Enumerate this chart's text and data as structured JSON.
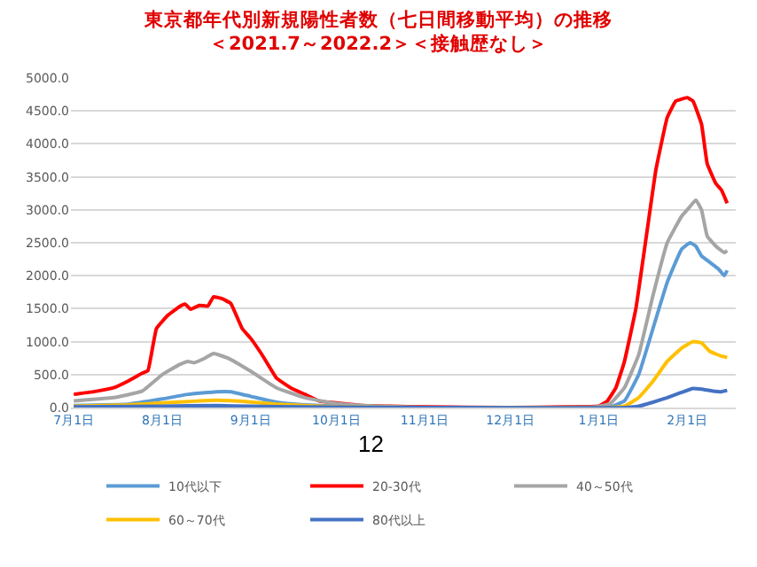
{
  "chart_data": {
    "type": "line",
    "title": "東京都年代別新規陽性者数（七日間移動平均）の推移",
    "subtitle": "＜2021.7～2022.2＞＜接触歴なし＞",
    "annotations": [
      "12"
    ],
    "ylim": [
      0,
      5000
    ],
    "yticks": [
      {
        "value": 0,
        "label": "0.0"
      },
      {
        "value": 500,
        "label": "500.0"
      },
      {
        "value": 1000,
        "label": "1000.0"
      },
      {
        "value": 1500,
        "label": "1500.0"
      },
      {
        "value": 2000,
        "label": "2000.0"
      },
      {
        "value": 2500,
        "label": "2500.0"
      },
      {
        "value": 3000,
        "label": "3000.0"
      },
      {
        "value": 3500,
        "label": "3500.0"
      },
      {
        "value": 4000,
        "label": "4000.0"
      },
      {
        "value": 4500,
        "label": "4500.0"
      },
      {
        "value": 5000,
        "label": "5000.0"
      }
    ],
    "xlim": [
      "2021-06-30",
      "2022-02-18"
    ],
    "xticks": [
      {
        "value": "2021-07-01",
        "label": "7月1日"
      },
      {
        "value": "2021-08-01",
        "label": "8月1日"
      },
      {
        "value": "2021-09-01",
        "label": "9月1日"
      },
      {
        "value": "2021-10-01",
        "label": "10月1日"
      },
      {
        "value": "2021-11-01",
        "label": "11月1日"
      },
      {
        "value": "2021-12-01",
        "label": "12月1日"
      },
      {
        "value": "2022-01-01",
        "label": "1月1日"
      },
      {
        "value": "2022-02-01",
        "label": "2月1日"
      }
    ],
    "grid": "y",
    "legend": "bottom",
    "marker": "none",
    "line_style": "solid",
    "series": [
      {
        "name": "10代以下",
        "color": "#5b9bd5",
        "x": [
          "2021-07-01",
          "2021-07-20",
          "2021-08-01",
          "2021-08-10",
          "2021-08-20",
          "2021-08-25",
          "2021-09-01",
          "2021-09-10",
          "2021-09-20",
          "2021-10-01",
          "2021-11-01",
          "2021-12-31",
          "2022-01-05",
          "2022-01-10",
          "2022-01-15",
          "2022-01-20",
          "2022-01-25",
          "2022-01-30",
          "2022-02-02",
          "2022-02-04",
          "2022-02-06",
          "2022-02-09",
          "2022-02-12",
          "2022-02-14",
          "2022-02-15"
        ],
        "values": [
          30,
          50,
          130,
          200,
          240,
          240,
          170,
          80,
          40,
          20,
          0,
          0,
          10,
          100,
          500,
          1200,
          1900,
          2400,
          2500,
          2450,
          2300,
          2200,
          2100,
          2000,
          2080
        ]
      },
      {
        "name": "20-30代",
        "color": "#ff0000",
        "x": [
          "2021-07-01",
          "2021-07-08",
          "2021-07-15",
          "2021-07-20",
          "2021-07-25",
          "2021-07-27",
          "2021-07-30",
          "2021-08-03",
          "2021-08-07",
          "2021-08-09",
          "2021-08-11",
          "2021-08-14",
          "2021-08-17",
          "2021-08-19",
          "2021-08-22",
          "2021-08-25",
          "2021-08-29",
          "2021-09-01",
          "2021-09-05",
          "2021-09-10",
          "2021-09-15",
          "2021-09-20",
          "2021-09-25",
          "2021-10-01",
          "2021-10-10",
          "2021-10-20",
          "2021-11-01",
          "2021-12-01",
          "2021-12-20",
          "2022-01-01",
          "2022-01-04",
          "2022-01-07",
          "2022-01-10",
          "2022-01-14",
          "2022-01-18",
          "2022-01-21",
          "2022-01-25",
          "2022-01-28",
          "2022-02-01",
          "2022-02-03",
          "2022-02-06",
          "2022-02-08",
          "2022-02-11",
          "2022-02-13",
          "2022-02-15"
        ],
        "values": [
          200,
          240,
          300,
          400,
          520,
          560,
          1200,
          1400,
          1530,
          1570,
          1490,
          1550,
          1540,
          1680,
          1650,
          1580,
          1200,
          1050,
          800,
          450,
          300,
          200,
          100,
          70,
          30,
          20,
          10,
          0,
          10,
          20,
          100,
          300,
          700,
          1500,
          2700,
          3600,
          4400,
          4650,
          4700,
          4650,
          4300,
          3700,
          3400,
          3300,
          3100
        ]
      },
      {
        "name": "40～50代",
        "color": "#a5a5a5",
        "x": [
          "2021-07-01",
          "2021-07-15",
          "2021-07-25",
          "2021-08-01",
          "2021-08-07",
          "2021-08-10",
          "2021-08-12",
          "2021-08-16",
          "2021-08-19",
          "2021-08-24",
          "2021-09-01",
          "2021-09-10",
          "2021-09-20",
          "2021-10-01",
          "2021-10-15",
          "2021-11-01",
          "2021-12-31",
          "2022-01-05",
          "2022-01-10",
          "2022-01-15",
          "2022-01-20",
          "2022-01-25",
          "2022-01-30",
          "2022-02-02",
          "2022-02-04",
          "2022-02-06",
          "2022-02-08",
          "2022-02-11",
          "2022-02-14",
          "2022-02-15"
        ],
        "values": [
          100,
          150,
          250,
          500,
          650,
          700,
          680,
          750,
          820,
          750,
          550,
          300,
          150,
          60,
          20,
          0,
          10,
          60,
          300,
          800,
          1700,
          2500,
          2900,
          3050,
          3150,
          3000,
          2600,
          2450,
          2350,
          2380
        ]
      },
      {
        "name": "60～70代",
        "color": "#ffc000",
        "x": [
          "2021-07-01",
          "2021-07-20",
          "2021-08-01",
          "2021-08-10",
          "2021-08-20",
          "2021-08-30",
          "2021-09-10",
          "2021-09-20",
          "2021-10-01",
          "2021-11-01",
          "2022-01-05",
          "2022-01-10",
          "2022-01-15",
          "2022-01-20",
          "2022-01-25",
          "2022-01-30",
          "2022-02-03",
          "2022-02-06",
          "2022-02-09",
          "2022-02-13",
          "2022-02-15"
        ],
        "values": [
          20,
          40,
          70,
          90,
          110,
          90,
          50,
          30,
          10,
          0,
          0,
          20,
          150,
          400,
          700,
          900,
          1000,
          980,
          850,
          780,
          760
        ]
      },
      {
        "name": "80代以上",
        "color": "#4472c4",
        "x": [
          "2021-07-01",
          "2021-08-01",
          "2021-08-20",
          "2021-09-01",
          "2021-09-20",
          "2021-11-01",
          "2022-01-10",
          "2022-01-15",
          "2022-01-20",
          "2022-01-25",
          "2022-01-30",
          "2022-02-03",
          "2022-02-06",
          "2022-02-10",
          "2022-02-13",
          "2022-02-15"
        ],
        "values": [
          10,
          20,
          30,
          20,
          10,
          0,
          0,
          20,
          80,
          150,
          230,
          290,
          280,
          250,
          240,
          260
        ]
      }
    ]
  }
}
